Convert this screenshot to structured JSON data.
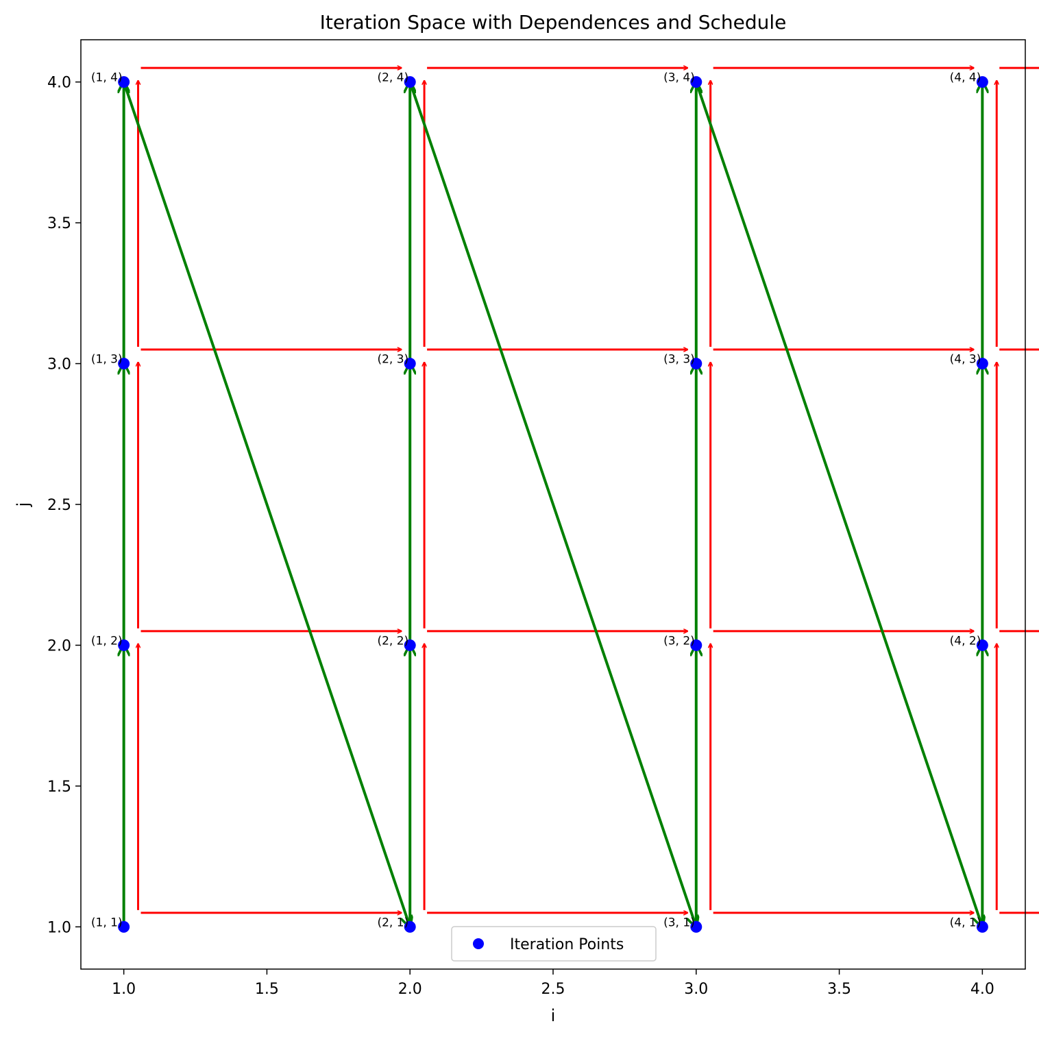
{
  "chart_data": {
    "type": "scatter",
    "title": "Iteration Space with Dependences and Schedule",
    "xlabel": "i",
    "ylabel": "j",
    "xlim": [
      0.85,
      4.15
    ],
    "ylim": [
      0.85,
      4.15
    ],
    "xticks": [
      "1.0",
      "1.5",
      "2.0",
      "2.5",
      "3.0",
      "3.5",
      "4.0"
    ],
    "yticks": [
      "1.0",
      "1.5",
      "2.0",
      "2.5",
      "3.0",
      "3.5",
      "4.0"
    ],
    "grid": false,
    "legend_position": "lower center",
    "points": {
      "name": "Iteration Points",
      "color": "#0000ff",
      "x": [
        1,
        1,
        1,
        1,
        2,
        2,
        2,
        2,
        3,
        3,
        3,
        3,
        4,
        4,
        4,
        4
      ],
      "y": [
        1,
        2,
        3,
        4,
        1,
        2,
        3,
        4,
        1,
        2,
        3,
        4,
        1,
        2,
        3,
        4
      ],
      "labels": [
        "(1, 1)",
        "(1, 2)",
        "(1, 3)",
        "(1, 4)",
        "(2, 1)",
        "(2, 2)",
        "(2, 3)",
        "(2, 4)",
        "(3, 1)",
        "(3, 2)",
        "(3, 3)",
        "(3, 4)",
        "(4, 1)",
        "(4, 2)",
        "(4, 3)",
        "(4, 4)"
      ]
    },
    "dependences": {
      "color": "#ff0000",
      "offset": 0.05,
      "vectors": [
        [
          1,
          0
        ],
        [
          0,
          1
        ]
      ],
      "grid_i": [
        1,
        2,
        3,
        4
      ],
      "grid_j": [
        1,
        2,
        3,
        4
      ]
    },
    "schedule": {
      "color": "#008000",
      "order": [
        [
          1,
          1
        ],
        [
          1,
          2
        ],
        [
          1,
          3
        ],
        [
          1,
          4
        ],
        [
          2,
          1
        ],
        [
          2,
          2
        ],
        [
          2,
          3
        ],
        [
          2,
          4
        ],
        [
          3,
          1
        ],
        [
          3,
          2
        ],
        [
          3,
          3
        ],
        [
          3,
          4
        ],
        [
          4,
          1
        ],
        [
          4,
          2
        ],
        [
          4,
          3
        ],
        [
          4,
          4
        ]
      ]
    }
  }
}
